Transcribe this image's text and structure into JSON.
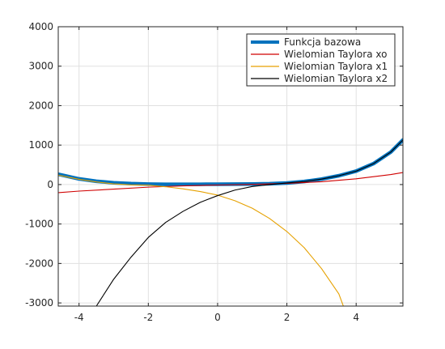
{
  "chart_data": {
    "type": "line",
    "title": "",
    "xlabel": "",
    "ylabel": "",
    "xlim": [
      -4.6,
      5.35
    ],
    "ylim": [
      -3080,
      4000
    ],
    "grid": true,
    "legend_position": "top-right",
    "x_ticks": [
      -4,
      -2,
      0,
      2,
      4
    ],
    "y_ticks": [
      -3000,
      -2000,
      -1000,
      0,
      1000,
      2000,
      3000,
      4000
    ],
    "x_tick_labels": [
      "-4",
      "-2",
      "0",
      "2",
      "4"
    ],
    "y_tick_labels": [
      "-3000",
      "-2000",
      "-1000",
      "0",
      "1000",
      "2000",
      "3000",
      "4000"
    ],
    "series": [
      {
        "name": "Funkcja bazowa",
        "color": "#0072bd",
        "line_width": "thick",
        "x": [
          -4.6,
          -4.0,
          -3.5,
          -3.0,
          -2.5,
          -2.0,
          -1.5,
          -1.0,
          -0.5,
          0.0,
          0.5,
          1.0,
          1.5,
          2.0,
          2.5,
          3.0,
          3.5,
          4.0,
          4.5,
          5.0,
          5.35
        ],
        "y": [
          261,
          144,
          83,
          45,
          23,
          11,
          6,
          6,
          7,
          8,
          10,
          14,
          21,
          40,
          77,
          138,
          224,
          340,
          530,
          823,
          1130
        ]
      },
      {
        "name": "Wielomian Taylora xo",
        "color": "#d00000",
        "line_width": "thin",
        "x": [
          -4.6,
          -4.0,
          -3.0,
          -2.0,
          -1.0,
          0.0,
          1.0,
          2.0,
          3.0,
          4.0,
          5.0,
          5.35
        ],
        "y": [
          -205,
          -166,
          -116,
          -66,
          -33,
          -12,
          5,
          30,
          72,
          145,
          254,
          305
        ]
      },
      {
        "name": "Wielomian Taylora x1",
        "color": "#e6a100",
        "line_width": "thin",
        "x": [
          -4.6,
          -4.0,
          -3.5,
          -3.0,
          -2.5,
          -2.0,
          -1.5,
          -1.0,
          -0.5,
          0.0,
          0.5,
          1.0,
          1.5,
          2.0,
          2.5,
          3.0,
          3.5,
          3.63
        ],
        "y": [
          238,
          133,
          66,
          18,
          -8,
          -16,
          -56,
          -108,
          -178,
          -268,
          -410,
          -600,
          -860,
          -1190,
          -1600,
          -2130,
          -2770,
          -3080
        ]
      },
      {
        "name": "Wielomian Taylora x2",
        "color": "#000000",
        "line_width": "thin",
        "x": [
          -3.5,
          -3.0,
          -2.5,
          -2.0,
          -1.5,
          -1.0,
          -0.5,
          0.0,
          0.5,
          1.0,
          1.5,
          2.0,
          2.5,
          3.0,
          3.5,
          4.0,
          4.5,
          5.0,
          5.35
        ],
        "y": [
          -3080,
          -2400,
          -1840,
          -1340,
          -960,
          -680,
          -450,
          -280,
          -140,
          -50,
          0,
          40,
          77,
          138,
          224,
          340,
          530,
          823,
          1130
        ]
      }
    ]
  }
}
